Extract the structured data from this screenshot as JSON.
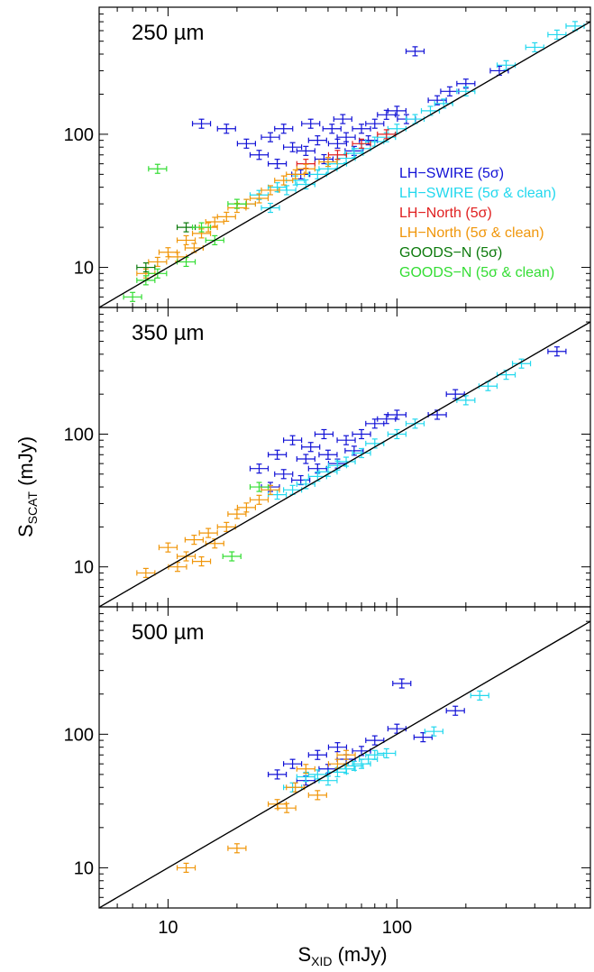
{
  "figure": {
    "ylabel_main": "S",
    "ylabel_sub": "SCAT",
    "ylabel_unit": " (mJy)",
    "xlabel_main": "S",
    "xlabel_sub": "XID",
    "xlabel_unit": " (mJy)"
  },
  "chart_data": [
    {
      "type": "scatter",
      "title": "250 µm",
      "xscale": "log",
      "yscale": "log",
      "xlim": [
        5,
        700
      ],
      "ylim": [
        5,
        900
      ],
      "yticks": [
        10,
        100
      ],
      "one_to_one_line": true,
      "legend_position": "right",
      "series": [
        {
          "name": "LH−SWIRE (5σ)",
          "color": "#1212d6",
          "points": [
            [
              14,
              120
            ],
            [
              18,
              110
            ],
            [
              22,
              85
            ],
            [
              25,
              70
            ],
            [
              28,
              95
            ],
            [
              30,
              60
            ],
            [
              32,
              110
            ],
            [
              35,
              80
            ],
            [
              38,
              50
            ],
            [
              40,
              75
            ],
            [
              42,
              120
            ],
            [
              45,
              90
            ],
            [
              48,
              65
            ],
            [
              52,
              110
            ],
            [
              55,
              85
            ],
            [
              58,
              130
            ],
            [
              60,
              95
            ],
            [
              65,
              75
            ],
            [
              70,
              110
            ],
            [
              75,
              90
            ],
            [
              80,
              120
            ],
            [
              90,
              140
            ],
            [
              100,
              150
            ],
            [
              110,
              130
            ],
            [
              120,
              420
            ],
            [
              150,
              180
            ],
            [
              170,
              210
            ],
            [
              200,
              240
            ],
            [
              280,
              300
            ]
          ]
        },
        {
          "name": "LH−SWIRE (5σ & clean)",
          "color": "#22d8ee",
          "points": [
            [
              22,
              30
            ],
            [
              25,
              35
            ],
            [
              28,
              28
            ],
            [
              30,
              40
            ],
            [
              33,
              38
            ],
            [
              36,
              45
            ],
            [
              40,
              42
            ],
            [
              45,
              50
            ],
            [
              50,
              55
            ],
            [
              55,
              60
            ],
            [
              60,
              66
            ],
            [
              65,
              72
            ],
            [
              70,
              78
            ],
            [
              80,
              88
            ],
            [
              90,
              95
            ],
            [
              100,
              110
            ],
            [
              120,
              130
            ],
            [
              140,
              150
            ],
            [
              160,
              170
            ],
            [
              200,
              210
            ],
            [
              300,
              330
            ],
            [
              400,
              450
            ],
            [
              500,
              560
            ],
            [
              600,
              650
            ]
          ]
        },
        {
          "name": "LH−North (5σ)",
          "color": "#e02020",
          "points": [
            [
              40,
              60
            ],
            [
              55,
              70
            ],
            [
              70,
              85
            ],
            [
              90,
              100
            ]
          ]
        },
        {
          "name": "LH−North (5σ & clean)",
          "color": "#f0960a",
          "points": [
            [
              8,
              9
            ],
            [
              9,
              11
            ],
            [
              10,
              13
            ],
            [
              11,
              12
            ],
            [
              12,
              16
            ],
            [
              13,
              14
            ],
            [
              14,
              18
            ],
            [
              15,
              20
            ],
            [
              16,
              22
            ],
            [
              18,
              24
            ],
            [
              20,
              28
            ],
            [
              22,
              30
            ],
            [
              25,
              33
            ],
            [
              28,
              38
            ],
            [
              32,
              45
            ],
            [
              36,
              50
            ],
            [
              40,
              55
            ],
            [
              50,
              62
            ]
          ]
        },
        {
          "name": "GOODS−N (5σ)",
          "color": "#0c7a0c",
          "points": [
            [
              8,
              10
            ],
            [
              12,
              20
            ]
          ]
        },
        {
          "name": "GOODS−N (5σ & clean)",
          "color": "#33dd33",
          "points": [
            [
              7,
              6
            ],
            [
              8,
              8
            ],
            [
              9,
              9
            ],
            [
              9,
              55
            ],
            [
              12,
              11
            ],
            [
              14,
              20
            ],
            [
              16,
              16
            ],
            [
              20,
              30
            ]
          ]
        }
      ]
    },
    {
      "type": "scatter",
      "title": "350 µm",
      "xscale": "log",
      "yscale": "log",
      "xlim": [
        5,
        700
      ],
      "ylim": [
        5,
        900
      ],
      "yticks": [
        10,
        100
      ],
      "one_to_one_line": true,
      "series": [
        {
          "name": "LH−SWIRE (5σ)",
          "color": "#1212d6",
          "points": [
            [
              25,
              55
            ],
            [
              28,
              40
            ],
            [
              30,
              70
            ],
            [
              32,
              50
            ],
            [
              35,
              90
            ],
            [
              38,
              45
            ],
            [
              40,
              65
            ],
            [
              42,
              80
            ],
            [
              45,
              55
            ],
            [
              48,
              100
            ],
            [
              50,
              70
            ],
            [
              55,
              60
            ],
            [
              60,
              90
            ],
            [
              65,
              75
            ],
            [
              70,
              100
            ],
            [
              80,
              120
            ],
            [
              90,
              130
            ],
            [
              100,
              140
            ],
            [
              150,
              140
            ],
            [
              180,
              200
            ],
            [
              500,
              420
            ]
          ]
        },
        {
          "name": "LH−SWIRE (5σ & clean)",
          "color": "#22d8ee",
          "points": [
            [
              30,
              35
            ],
            [
              35,
              38
            ],
            [
              40,
              42
            ],
            [
              45,
              48
            ],
            [
              50,
              52
            ],
            [
              55,
              58
            ],
            [
              60,
              62
            ],
            [
              70,
              72
            ],
            [
              80,
              85
            ],
            [
              100,
              100
            ],
            [
              120,
              120
            ],
            [
              200,
              180
            ],
            [
              250,
              230
            ],
            [
              300,
              280
            ],
            [
              350,
              340
            ]
          ]
        },
        {
          "name": "LH−North (5σ & clean)",
          "color": "#f0960a",
          "points": [
            [
              8,
              9
            ],
            [
              10,
              14
            ],
            [
              11,
              10
            ],
            [
              12,
              12
            ],
            [
              13,
              16
            ],
            [
              14,
              11
            ],
            [
              15,
              18
            ],
            [
              16,
              15
            ],
            [
              18,
              20
            ],
            [
              20,
              25
            ],
            [
              22,
              28
            ],
            [
              25,
              32
            ],
            [
              28,
              38
            ]
          ]
        },
        {
          "name": "GOODS−N (5σ & clean)",
          "color": "#33dd33",
          "points": [
            [
              19,
              12
            ],
            [
              25,
              40
            ]
          ]
        }
      ]
    },
    {
      "type": "scatter",
      "title": "500 µm",
      "xscale": "log",
      "yscale": "log",
      "xlim": [
        5,
        700
      ],
      "ylim": [
        5,
        900
      ],
      "yticks": [
        10,
        100
      ],
      "xticks": [
        10,
        100
      ],
      "one_to_one_line": true,
      "series": [
        {
          "name": "LH−SWIRE (5σ)",
          "color": "#1212d6",
          "points": [
            [
              30,
              50
            ],
            [
              35,
              60
            ],
            [
              40,
              45
            ],
            [
              45,
              70
            ],
            [
              50,
              55
            ],
            [
              55,
              80
            ],
            [
              60,
              65
            ],
            [
              70,
              75
            ],
            [
              80,
              90
            ],
            [
              100,
              110
            ],
            [
              105,
              240
            ],
            [
              130,
              95
            ],
            [
              180,
              150
            ]
          ]
        },
        {
          "name": "LH−SWIRE (5σ & clean)",
          "color": "#22d8ee",
          "points": [
            [
              35,
              40
            ],
            [
              40,
              48
            ],
            [
              45,
              50
            ],
            [
              50,
              45
            ],
            [
              55,
              52
            ],
            [
              60,
              55
            ],
            [
              65,
              58
            ],
            [
              70,
              60
            ],
            [
              75,
              65
            ],
            [
              80,
              70
            ],
            [
              90,
              72
            ],
            [
              145,
              105
            ],
            [
              230,
              195
            ]
          ]
        },
        {
          "name": "LH−North (5σ & clean)",
          "color": "#f0960a",
          "points": [
            [
              12,
              10
            ],
            [
              20,
              14
            ],
            [
              30,
              30
            ],
            [
              33,
              28
            ],
            [
              36,
              40
            ],
            [
              40,
              55
            ],
            [
              45,
              35
            ],
            [
              55,
              60
            ],
            [
              60,
              70
            ]
          ]
        }
      ]
    }
  ]
}
